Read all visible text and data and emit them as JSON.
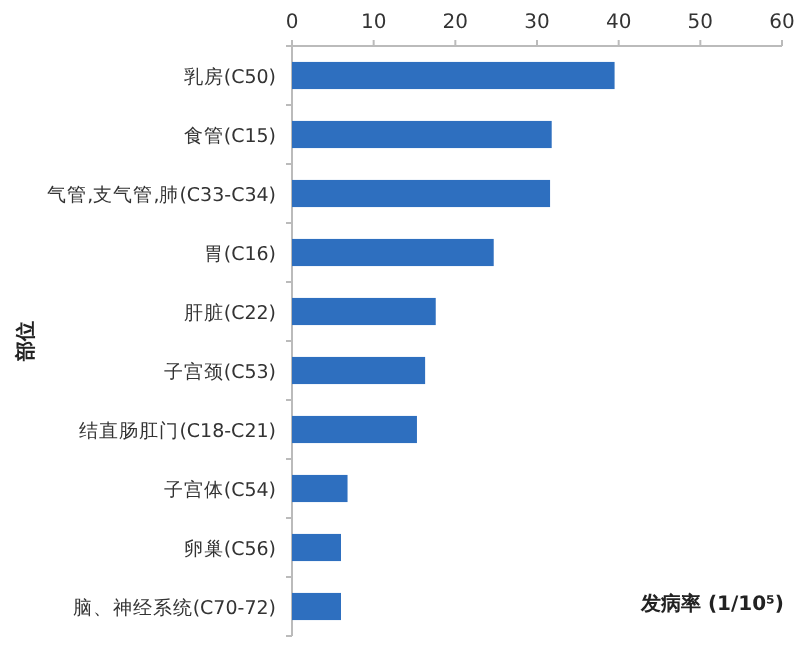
{
  "chart_data": {
    "type": "bar",
    "orientation": "horizontal",
    "xlabel": "发病率 (1/10⁵)",
    "ylabel": "部位",
    "categories": [
      "乳房(C50)",
      "食管(C15)",
      "气管,支气管,肺(C33-C34)",
      "胃(C16)",
      "肝脏(C22)",
      "子宫颈(C53)",
      "结直肠肛门(C18-C21)",
      "子宫体(C54)",
      "卵巢(C56)",
      "脑、神经系统(C70-72)"
    ],
    "values": [
      39.5,
      31.8,
      31.6,
      24.7,
      17.6,
      16.3,
      15.3,
      6.8,
      6.0,
      6.0
    ],
    "color": "#2e6fbf",
    "xlim": [
      0,
      60
    ],
    "xticks": [
      0,
      10,
      20,
      30,
      40,
      50,
      60
    ],
    "grid": false
  }
}
